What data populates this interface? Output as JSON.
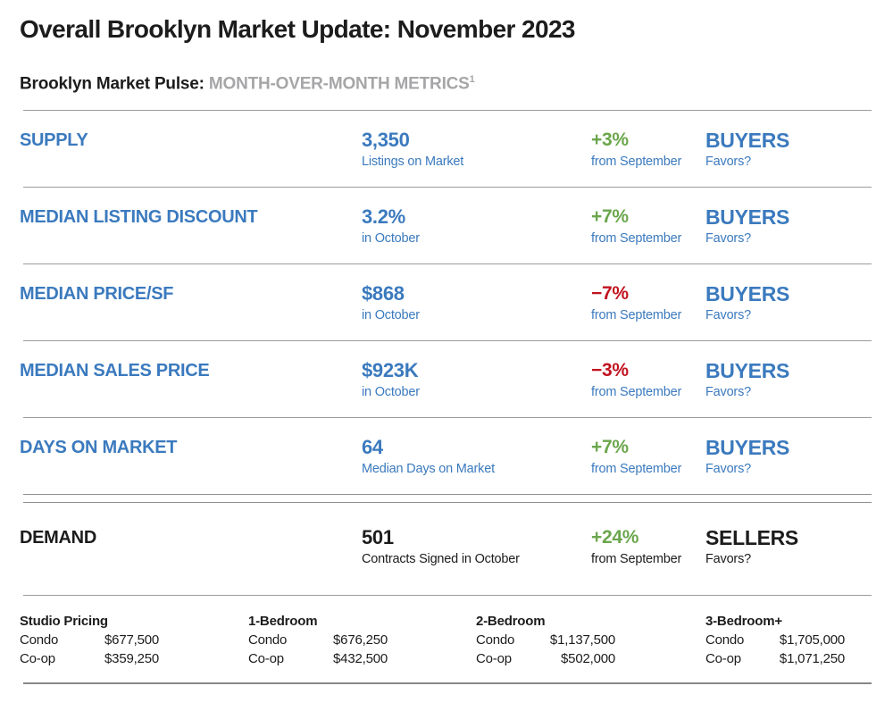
{
  "page": {
    "title": "Overall Brooklyn Market Update: November 2023",
    "subtitle_prefix": "Brooklyn Market Pulse: ",
    "subtitle_emphasis": "MONTH-OVER-MONTH METRICS",
    "subtitle_superscript": "1"
  },
  "colors": {
    "blue": "#3b7abe",
    "green": "#6ba64c",
    "red": "#c11320",
    "gray": "#a6a6a8",
    "dark": "#1c1c1c"
  },
  "metrics": [
    {
      "label": "SUPPLY",
      "value": "3,350",
      "value_caption": "Listings on Market",
      "change": "+3%",
      "change_direction": "up",
      "change_caption": "from September",
      "favors": "BUYERS",
      "favors_caption": "Favors?",
      "theme": "blue"
    },
    {
      "label": "MEDIAN LISTING DISCOUNT",
      "value": "3.2%",
      "value_caption": "in October",
      "change": "+7%",
      "change_direction": "up",
      "change_caption": "from September",
      "favors": "BUYERS",
      "favors_caption": "Favors?",
      "theme": "blue"
    },
    {
      "label": "MEDIAN PRICE/SF",
      "value": "$868",
      "value_caption": "in October",
      "change": "−7%",
      "change_direction": "down",
      "change_caption": "from September",
      "favors": "BUYERS",
      "favors_caption": "Favors?",
      "theme": "blue"
    },
    {
      "label": "MEDIAN SALES PRICE",
      "value": "$923K",
      "value_caption": "in October",
      "change": "−3%",
      "change_direction": "down",
      "change_caption": "from September",
      "favors": "BUYERS",
      "favors_caption": "Favors?",
      "theme": "blue"
    },
    {
      "label": "DAYS ON MARKET",
      "value": "64",
      "value_caption": "Median Days on Market",
      "change": "+7%",
      "change_direction": "up",
      "change_caption": "from September",
      "favors": "BUYERS",
      "favors_caption": "Favors?",
      "theme": "blue"
    },
    {
      "label": "DEMAND",
      "value": "501",
      "value_caption": "Contracts Signed in October",
      "change": "+24%",
      "change_direction": "up",
      "change_caption": "from September",
      "favors": "SELLERS",
      "favors_caption": "Favors?",
      "theme": "dark"
    }
  ],
  "pricing": {
    "groups": [
      {
        "title": "Studio Pricing",
        "rows": [
          {
            "label": "Condo",
            "price": "$677,500"
          },
          {
            "label": "Co-op",
            "price": "$359,250"
          }
        ]
      },
      {
        "title": "1-Bedroom",
        "rows": [
          {
            "label": "Condo",
            "price": "$676,250"
          },
          {
            "label": "Co-op",
            "price": "$432,500"
          }
        ]
      },
      {
        "title": "2-Bedroom",
        "rows": [
          {
            "label": "Condo",
            "price": "$1,137,500"
          },
          {
            "label": "Co-op",
            "price": "$502,000"
          }
        ]
      },
      {
        "title": "3-Bedroom+",
        "rows": [
          {
            "label": "Condo",
            "price": "$1,705,000"
          },
          {
            "label": "Co-op",
            "price": "$1,071,250"
          }
        ]
      }
    ]
  }
}
